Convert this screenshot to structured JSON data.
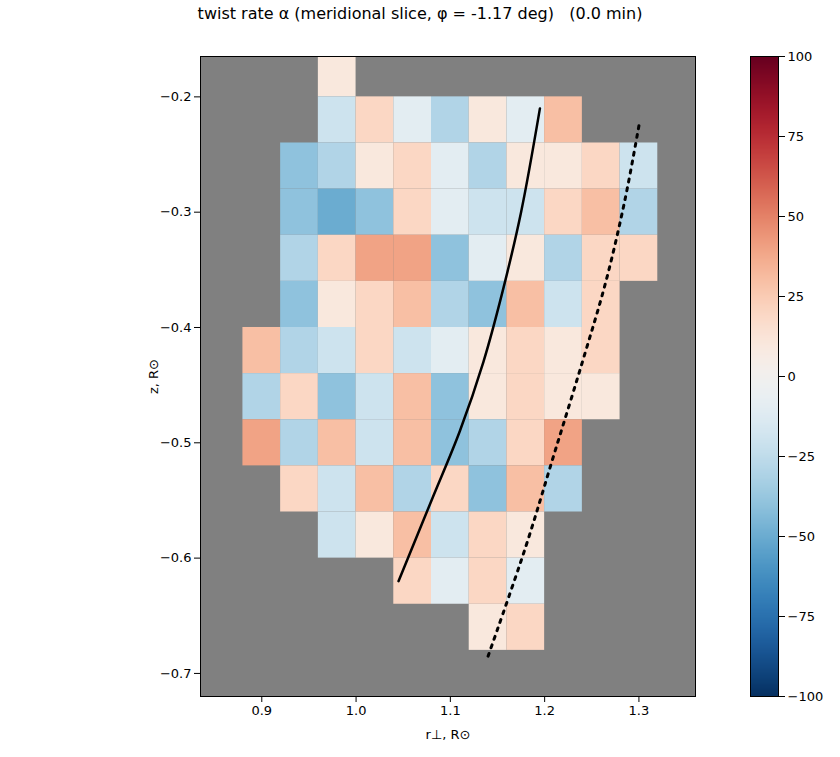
{
  "chart_data": {
    "type": "heatmap",
    "title": "twist rate α (meridional slice, φ = -1.17 deg)   (0.0 min)",
    "x_label": "r⊥, R⊙",
    "y_label": "z, R⊙",
    "xlim": [
      0.835,
      1.36
    ],
    "ylim": [
      -0.72,
      -0.165
    ],
    "xticks": [
      0.9,
      {
        "value": 1,
        "label": "1.0"
      },
      1.1,
      1.2,
      1.3
    ],
    "yticks": [
      {
        "value": -0.7,
        "label": "−0.7"
      },
      {
        "value": -0.6,
        "label": "−0.6"
      },
      {
        "value": -0.5,
        "label": "−0.5"
      },
      {
        "value": -0.4,
        "label": "−0.4"
      },
      {
        "value": -0.3,
        "label": "−0.3"
      },
      {
        "value": -0.2,
        "label": "−0.2"
      }
    ],
    "x_centers": [
      0.86,
      0.9,
      0.94,
      0.98,
      1.02,
      1.06,
      1.1,
      1.14,
      1.18,
      1.22,
      1.26,
      1.3,
      1.34
    ],
    "z_centers": [
      -0.18,
      -0.22,
      -0.26,
      -0.3,
      -0.34,
      -0.38,
      -0.42,
      -0.46,
      -0.5,
      -0.54,
      -0.58,
      -0.62,
      -0.66
    ],
    "values": [
      [
        null,
        null,
        null,
        10,
        null,
        null,
        null,
        null,
        null,
        null,
        null,
        null,
        null
      ],
      [
        null,
        null,
        null,
        -20,
        20,
        -10,
        -30,
        10,
        -10,
        30,
        null,
        null,
        null
      ],
      [
        null,
        null,
        -40,
        -30,
        10,
        20,
        -10,
        -30,
        10,
        10,
        20,
        -20,
        null
      ],
      [
        null,
        null,
        -40,
        -50,
        -40,
        20,
        -10,
        -20,
        -20,
        20,
        30,
        -30,
        null
      ],
      [
        null,
        null,
        -30,
        20,
        40,
        40,
        -40,
        -10,
        10,
        -30,
        20,
        20,
        null
      ],
      [
        null,
        null,
        -40,
        10,
        20,
        30,
        -30,
        -40,
        30,
        -20,
        20,
        null,
        null
      ],
      [
        null,
        30,
        -30,
        -20,
        20,
        -20,
        -10,
        10,
        20,
        10,
        20,
        null,
        null
      ],
      [
        null,
        -30,
        20,
        -40,
        -20,
        30,
        -40,
        10,
        20,
        10,
        10,
        null,
        null
      ],
      [
        null,
        40,
        -30,
        30,
        -20,
        30,
        -40,
        -30,
        20,
        40,
        null,
        null,
        null
      ],
      [
        null,
        null,
        20,
        -20,
        30,
        -30,
        20,
        -40,
        30,
        -30,
        null,
        null,
        null
      ],
      [
        null,
        null,
        null,
        -20,
        10,
        30,
        -20,
        20,
        10,
        null,
        null,
        null,
        null
      ],
      [
        null,
        null,
        null,
        null,
        null,
        20,
        -10,
        20,
        -10,
        null,
        null,
        null,
        null
      ],
      [
        null,
        null,
        null,
        null,
        null,
        null,
        null,
        10,
        20,
        null,
        null,
        null,
        null
      ]
    ],
    "colorbar": {
      "range": [
        -100,
        100
      ],
      "ticks": [
        {
          "value": -100,
          "label": "−100"
        },
        {
          "value": -75,
          "label": "−75"
        },
        {
          "value": -50,
          "label": "−50"
        },
        {
          "value": -25,
          "label": "−25"
        },
        0,
        25,
        50,
        75,
        100
      ]
    },
    "series": [
      {
        "color": "#000000",
        "line_style": "solid",
        "x": [
          1.045,
          1.08,
          1.11,
          1.135,
          1.155,
          1.175,
          1.195
        ],
        "y": [
          -0.62,
          -0.55,
          -0.49,
          -0.43,
          -0.37,
          -0.3,
          -0.21
        ]
      },
      {
        "color": "#000000",
        "line_style": "dotted",
        "x": [
          1.14,
          1.18,
          1.21,
          1.24,
          1.265,
          1.285,
          1.3
        ],
        "y": [
          -0.685,
          -0.59,
          -0.51,
          -0.43,
          -0.36,
          -0.29,
          -0.225
        ]
      }
    ]
  }
}
